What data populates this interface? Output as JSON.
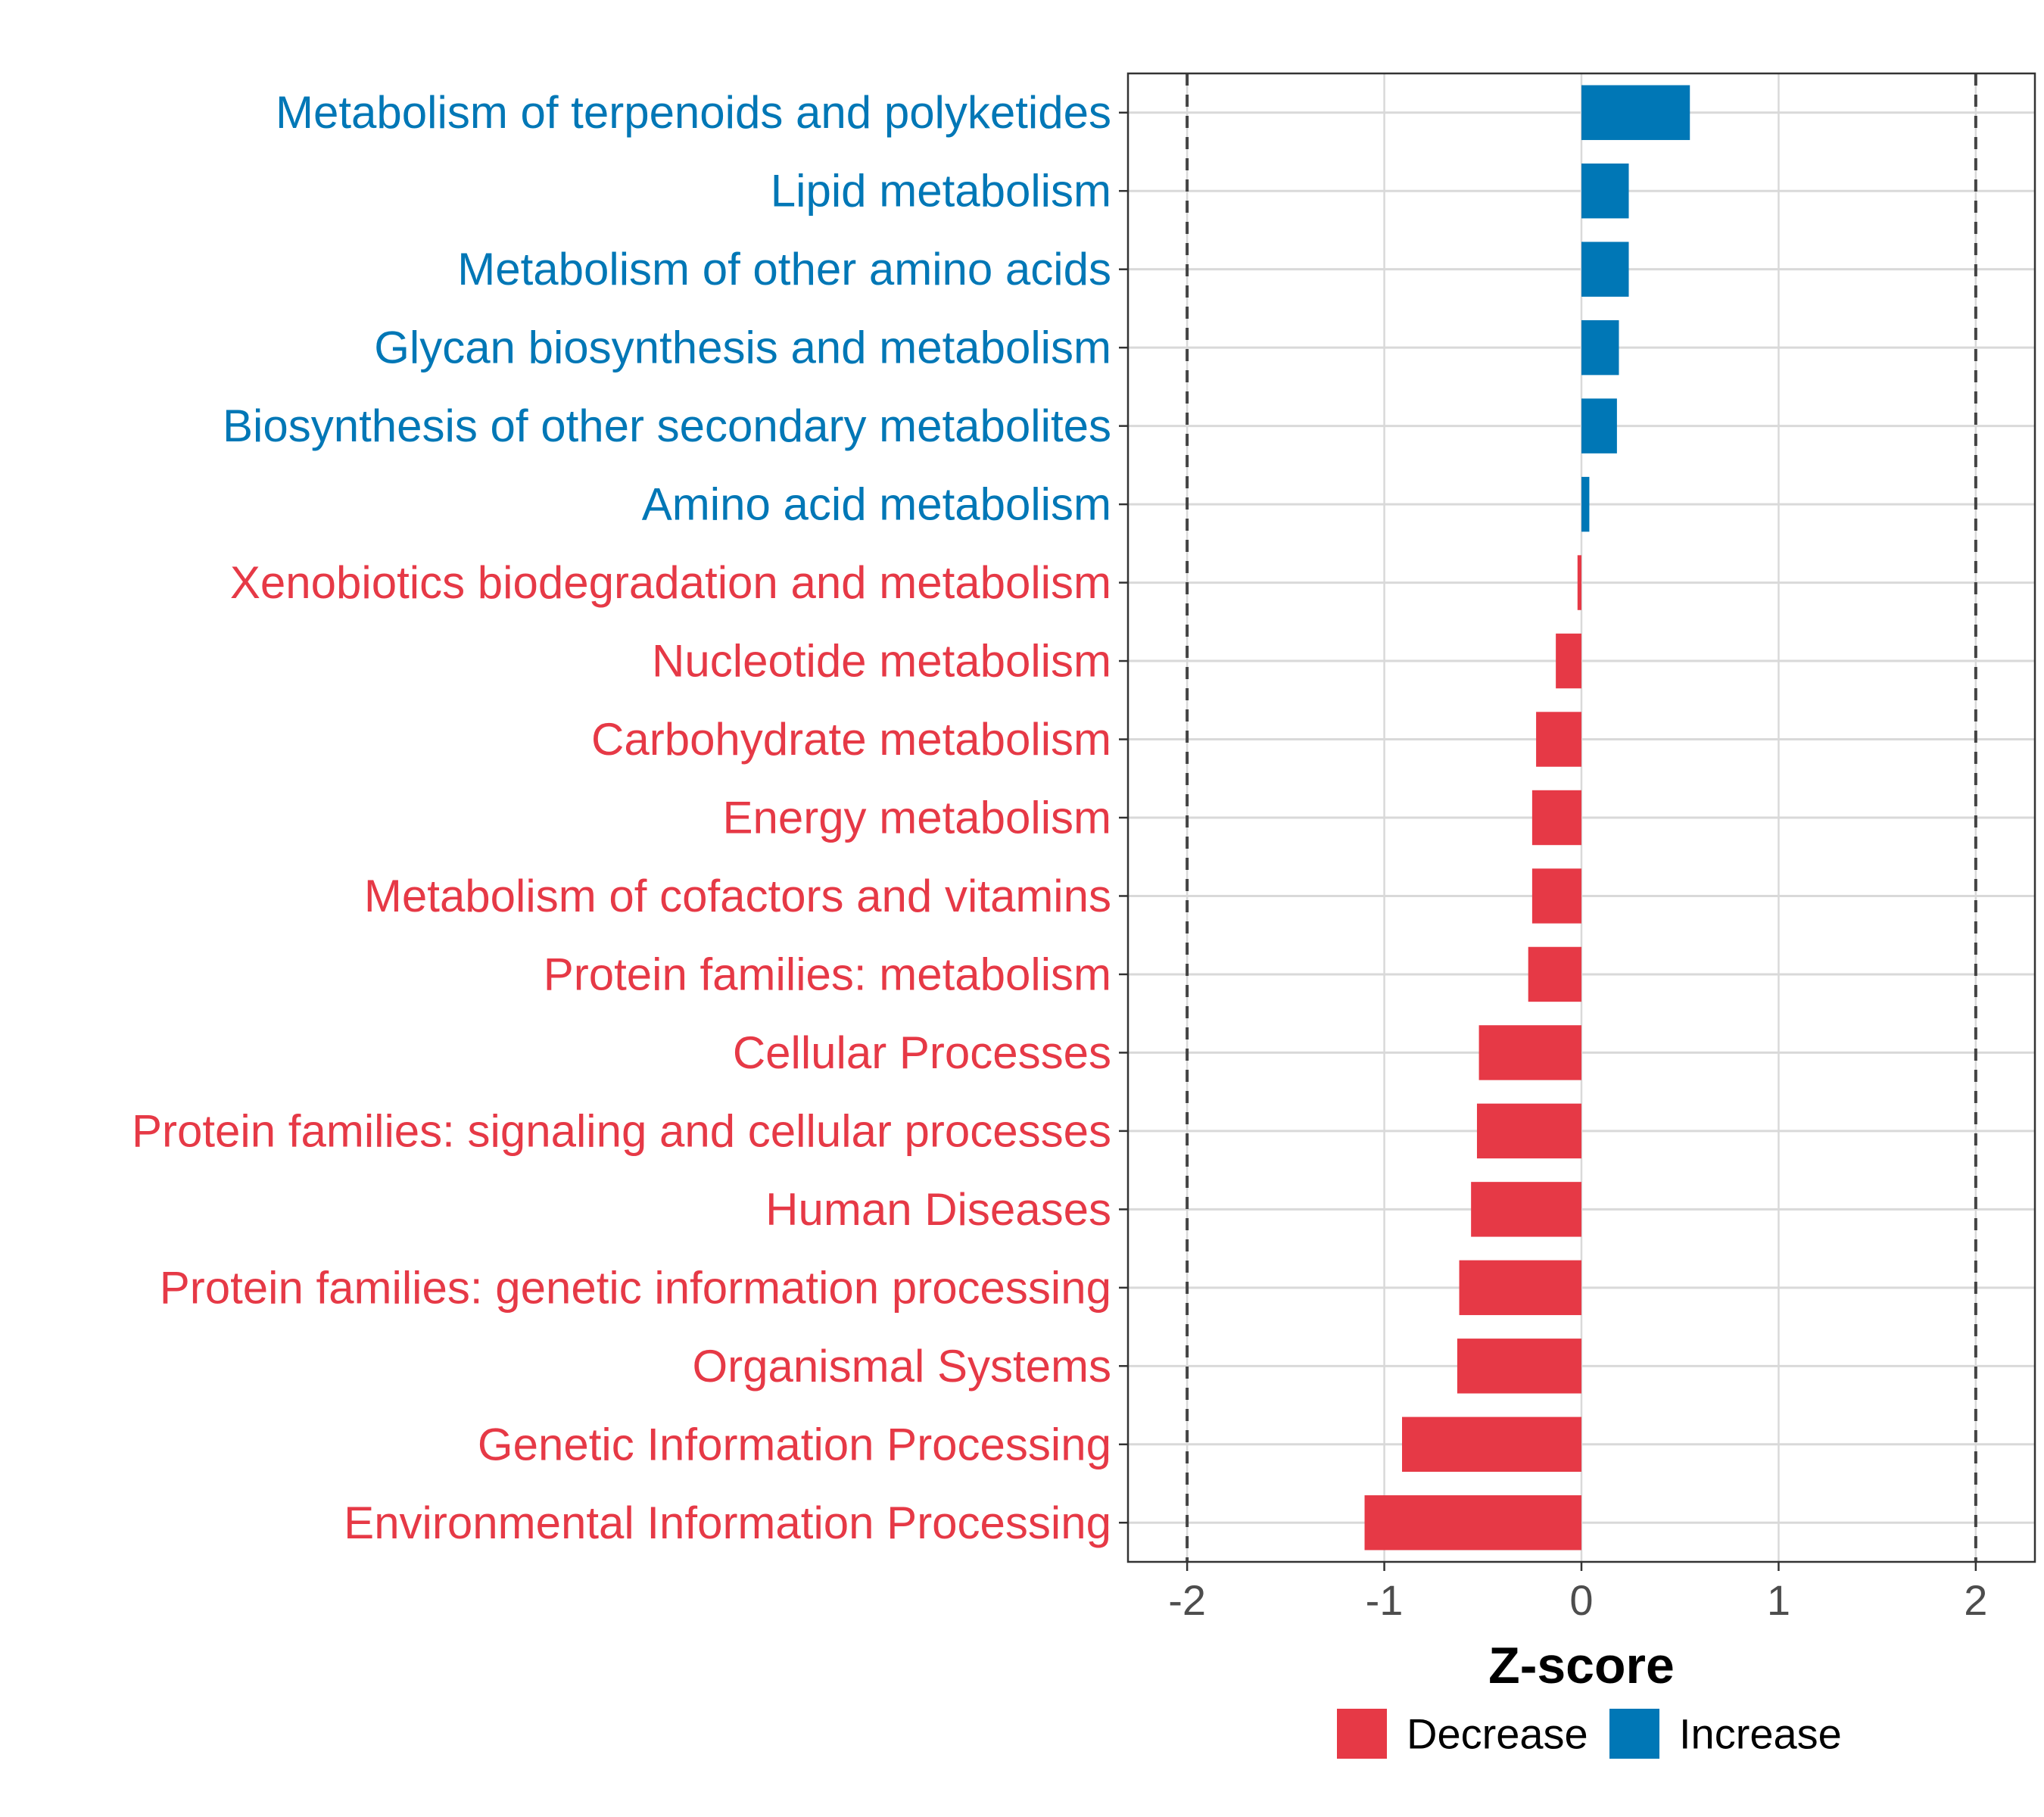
{
  "chart_data": {
    "type": "bar",
    "orientation": "horizontal",
    "xlabel": "Z-score",
    "xlim": [
      -2.3,
      2.3
    ],
    "xticks": [
      -2,
      -1,
      0,
      1,
      2
    ],
    "xtick_labels": [
      "-2",
      "-1",
      "0",
      "1",
      "2"
    ],
    "reference_lines": [
      -2,
      2
    ],
    "grid": true,
    "legend_position": "bottom",
    "legend": [
      {
        "name": "Decrease",
        "color": "#e63946"
      },
      {
        "name": "Increase",
        "color": "#0077b6"
      }
    ],
    "categories": [
      "Metabolism of terpenoids and polyketides",
      "Lipid metabolism",
      "Metabolism of other amino acids",
      "Glycan biosynthesis and metabolism",
      "Biosynthesis of other secondary metabolites",
      "Amino acid metabolism",
      "Xenobiotics biodegradation and metabolism",
      "Nucleotide metabolism",
      "Carbohydrate metabolism",
      "Energy metabolism",
      "Metabolism of cofactors and vitamins",
      "Protein families: metabolism",
      "Cellular Processes",
      "Protein families: signaling and cellular processes",
      "Human Diseases",
      "Protein families: genetic information processing",
      "Organismal Systems",
      "Genetic Information Processing",
      "Environmental Information Processing"
    ],
    "values": [
      0.55,
      0.24,
      0.24,
      0.19,
      0.18,
      0.04,
      -0.02,
      -0.13,
      -0.23,
      -0.25,
      -0.25,
      -0.27,
      -0.52,
      -0.53,
      -0.56,
      -0.62,
      -0.63,
      -0.91,
      -1.1
    ],
    "groups": [
      "Increase",
      "Increase",
      "Increase",
      "Increase",
      "Increase",
      "Increase",
      "Decrease",
      "Decrease",
      "Decrease",
      "Decrease",
      "Decrease",
      "Decrease",
      "Decrease",
      "Decrease",
      "Decrease",
      "Decrease",
      "Decrease",
      "Decrease",
      "Decrease"
    ]
  }
}
